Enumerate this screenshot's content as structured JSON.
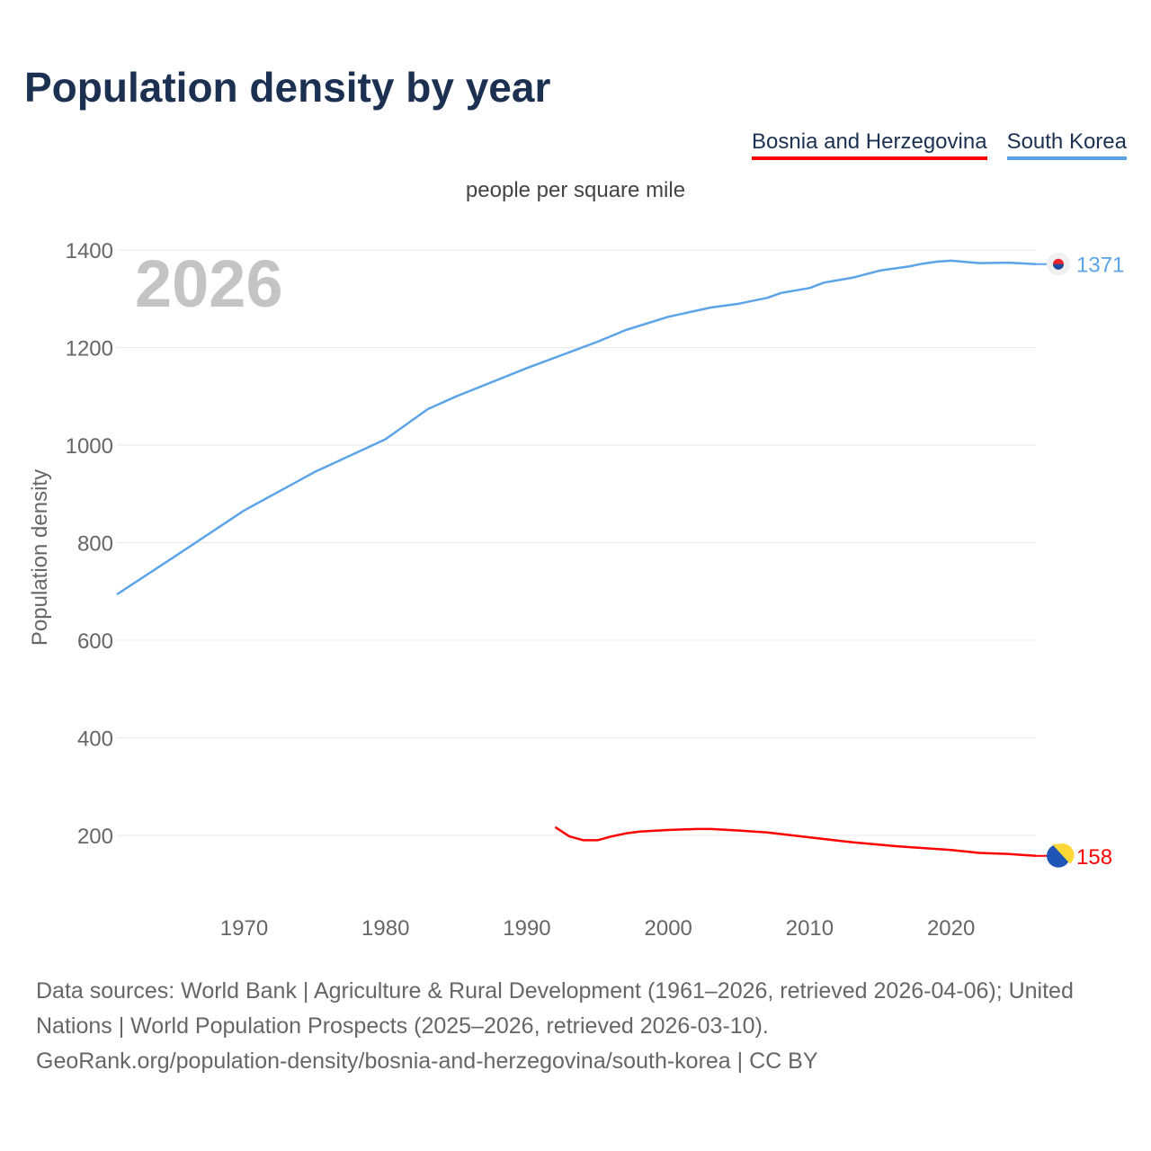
{
  "title": "Population density by year",
  "unit_label": "people per square mile",
  "footer": {
    "sources": "Data sources: World Bank | Agriculture & Rural Development (1961–2026, retrieved 2026-04-06); United Nations | World Population Prospects (2025–2026, retrieved 2026-03-10).",
    "link": "GeoRank.org/population-density/bosnia-and-herzegovina/south-korea | CC BY"
  },
  "chart_data": {
    "type": "line",
    "title": "Population density by year",
    "xlabel": "",
    "ylabel": "Population density",
    "year_label": "2026",
    "xlim": [
      1961,
      2026
    ],
    "ylim": [
      100,
      1400
    ],
    "x_ticks": [
      1970,
      1980,
      1990,
      2000,
      2010,
      2020
    ],
    "y_ticks": [
      200,
      400,
      600,
      800,
      1000,
      1200,
      1400
    ],
    "grid": true,
    "legend_position": "top-right",
    "series": [
      {
        "name": "Bosnia and Herzegovina",
        "color": "#ff0000",
        "end_label": "158",
        "flag": "bosnia-flag",
        "x": [
          1992,
          1993,
          1994,
          1995,
          1996,
          1997,
          1998,
          2000,
          2002,
          2003,
          2005,
          2007,
          2010,
          2013,
          2016,
          2020,
          2022,
          2024,
          2026
        ],
        "y": [
          217,
          198,
          190,
          190,
          198,
          204,
          208,
          211,
          213,
          213,
          210,
          206,
          196,
          186,
          178,
          170,
          164,
          162,
          158
        ]
      },
      {
        "name": "South Korea",
        "color": "#5ba4e8",
        "end_label": "1371",
        "flag": "south-korea-flag",
        "x": [
          1961,
          1965,
          1970,
          1975,
          1980,
          1983,
          1985,
          1990,
          1995,
          1997,
          2000,
          2003,
          2005,
          2007,
          2008,
          2010,
          2011,
          2013,
          2015,
          2017,
          2018,
          2019,
          2020,
          2022,
          2024,
          2026
        ],
        "y": [
          694,
          770,
          866,
          945,
          1012,
          1074,
          1100,
          1158,
          1212,
          1236,
          1263,
          1282,
          1290,
          1302,
          1312,
          1322,
          1333,
          1343,
          1358,
          1366,
          1372,
          1376,
          1378,
          1373,
          1374,
          1371
        ]
      }
    ]
  }
}
